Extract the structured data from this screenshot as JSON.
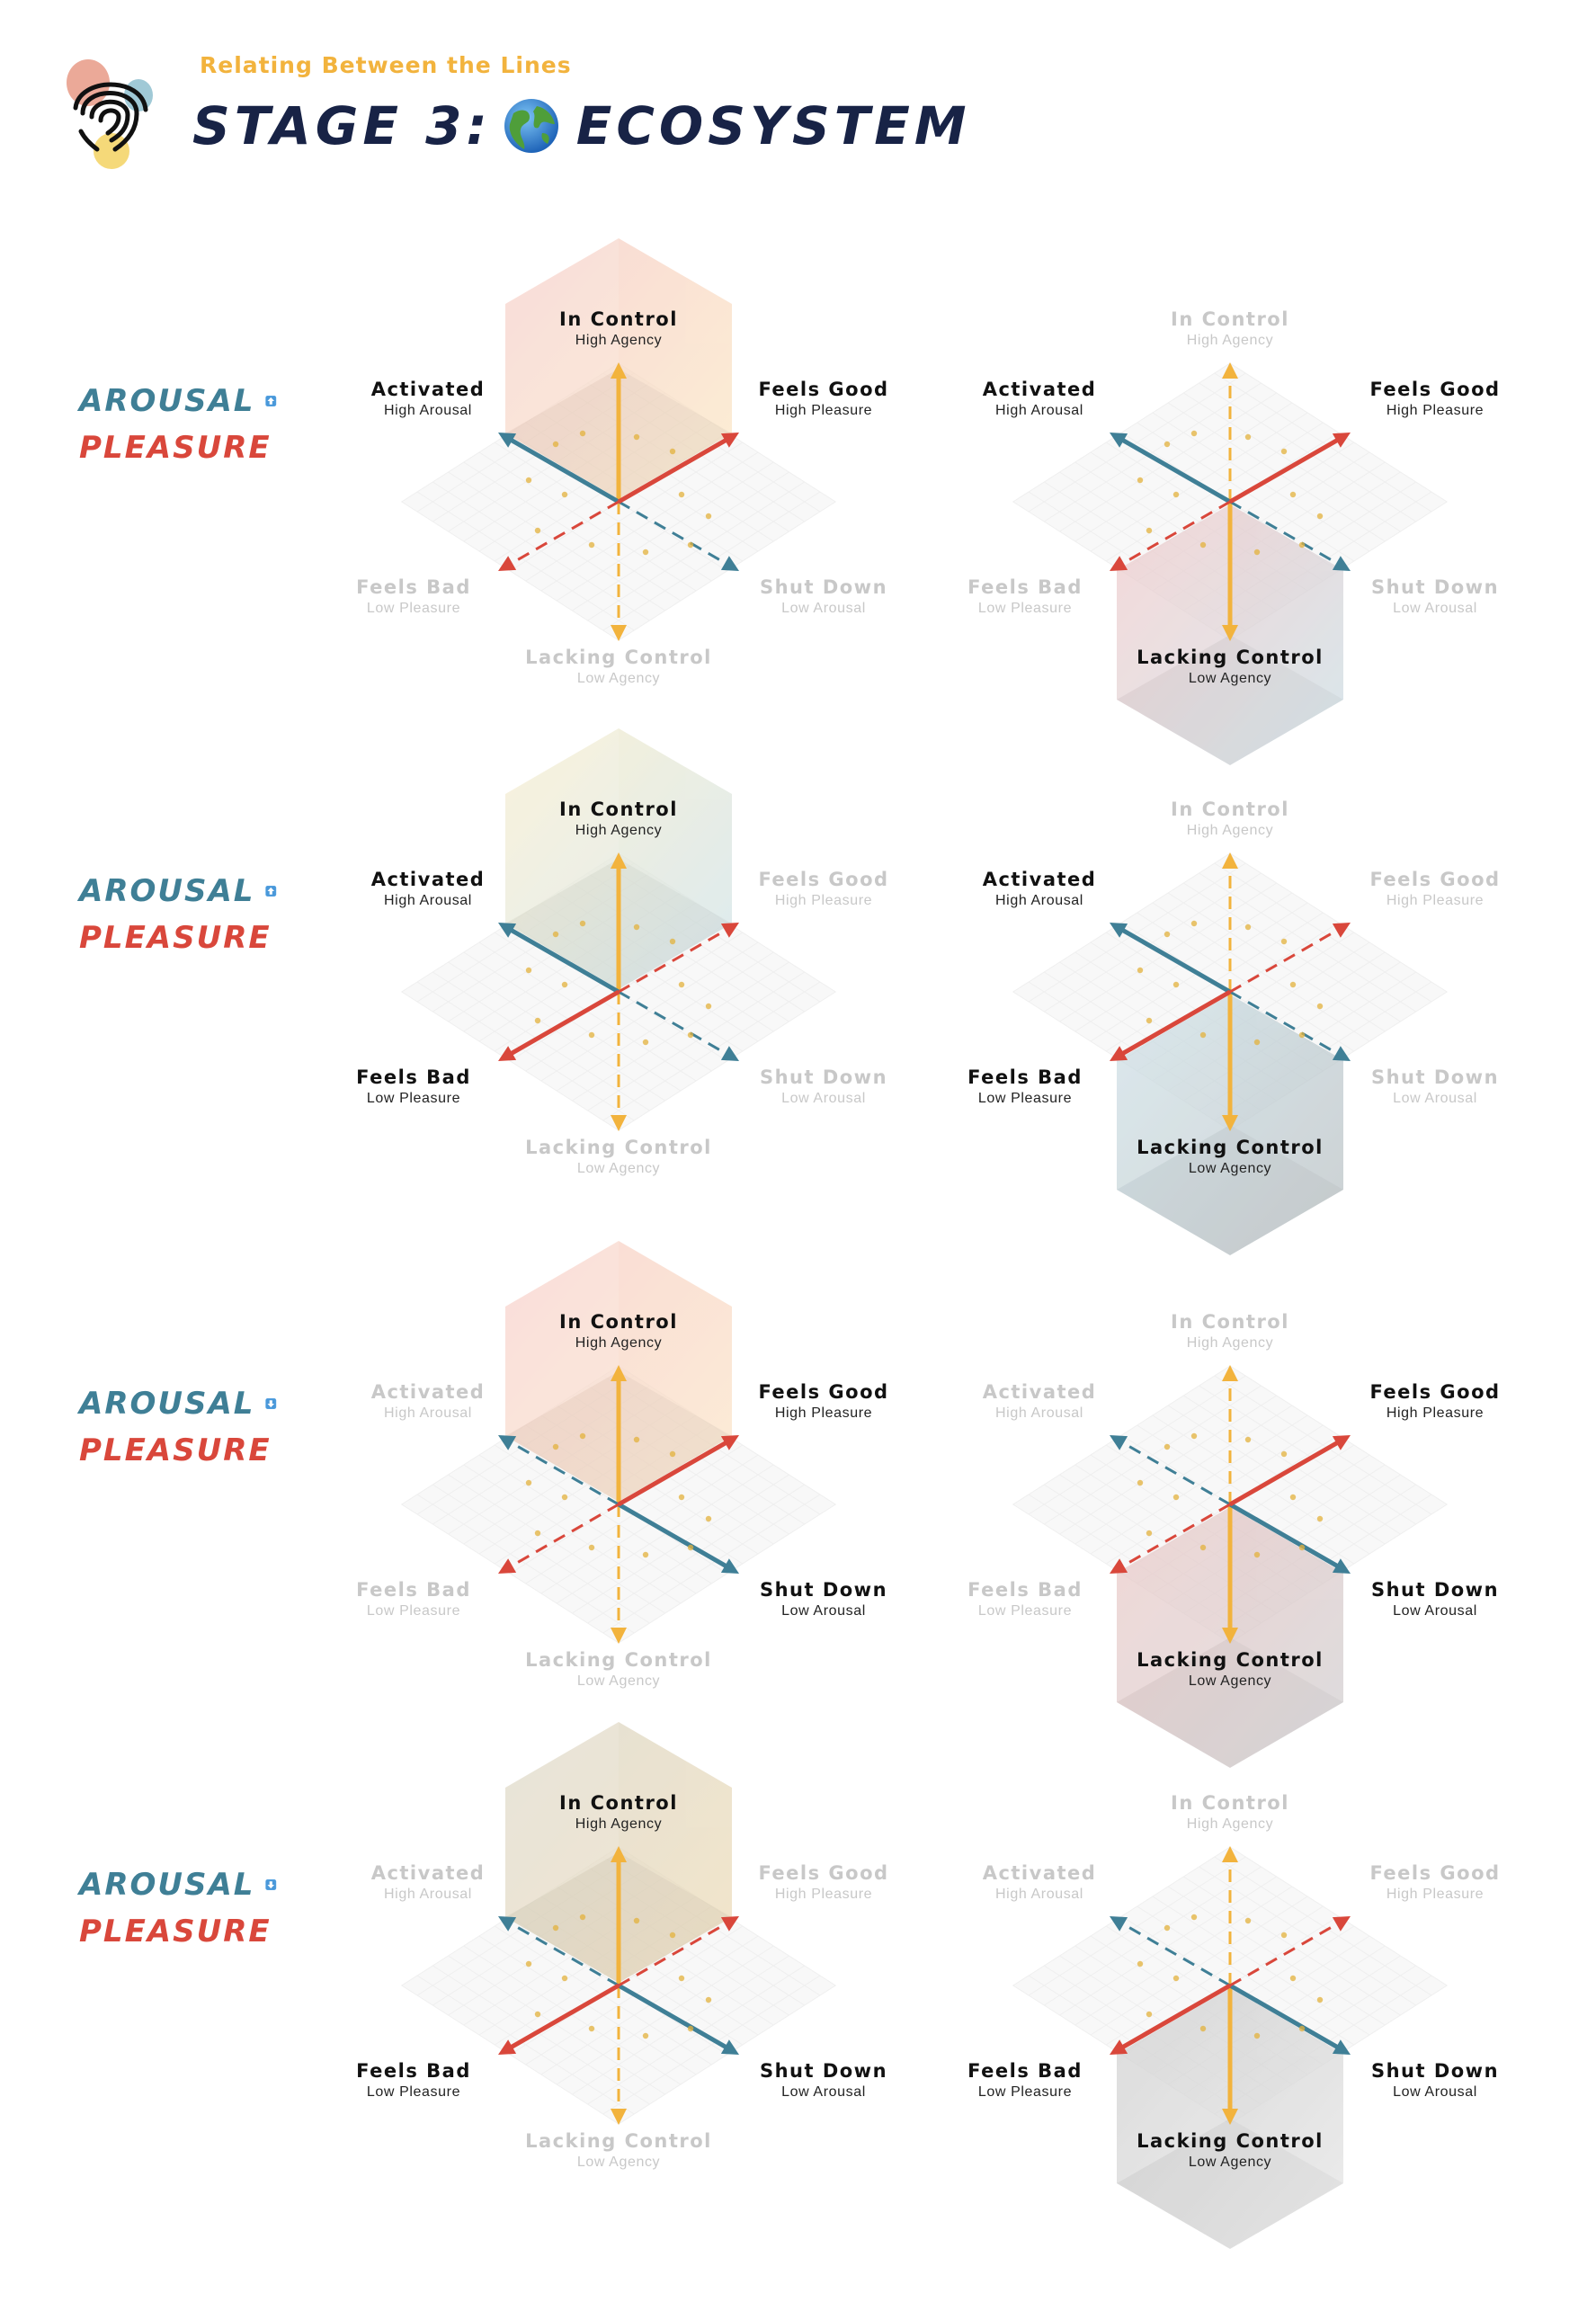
{
  "header": {
    "subtitle": "Relating Between the Lines",
    "title_left": "STAGE 3:",
    "title_right": "ECOSYSTEM",
    "globe_icon": "globe-emoji",
    "fingerprint_icon": "fingerprint-logo"
  },
  "axes": {
    "in_control": {
      "title": "In Control",
      "sub": "High Agency"
    },
    "lacking_control": {
      "title": "Lacking Control",
      "sub": "Low Agency"
    },
    "activated": {
      "title": "Activated",
      "sub": "High Arousal"
    },
    "shut_down": {
      "title": "Shut Down",
      "sub": "Low Arousal"
    },
    "feels_good": {
      "title": "Feels Good",
      "sub": "High Pleasure"
    },
    "feels_bad": {
      "title": "Feels Bad",
      "sub": "Low Pleasure"
    }
  },
  "colors": {
    "agency_axis": "#f2b33d",
    "arousal_axis": "#3f7f96",
    "pleasure_axis": "#d9473b",
    "title": "#182346",
    "faded_label": "#c8c8c8"
  },
  "rows": [
    {
      "arousal_label": "AROUSAL",
      "arousal_dir": "up",
      "pleasure_label": "PLEASURE",
      "pleasure_dir": "up",
      "diagrams": [
        {
          "cube": "upper",
          "active": [
            "in_control",
            "activated",
            "feels_good"
          ]
        },
        {
          "cube": "lower",
          "active": [
            "lacking_control",
            "activated",
            "feels_good"
          ]
        }
      ]
    },
    {
      "arousal_label": "AROUSAL",
      "arousal_dir": "up",
      "pleasure_label": "PLEASURE",
      "pleasure_dir": "down",
      "diagrams": [
        {
          "cube": "upper",
          "active": [
            "in_control",
            "activated",
            "feels_bad"
          ]
        },
        {
          "cube": "lower",
          "active": [
            "lacking_control",
            "activated",
            "feels_bad"
          ]
        }
      ]
    },
    {
      "arousal_label": "AROUSAL",
      "arousal_dir": "down",
      "pleasure_label": "PLEASURE",
      "pleasure_dir": "up",
      "diagrams": [
        {
          "cube": "upper",
          "active": [
            "in_control",
            "shut_down",
            "feels_good"
          ]
        },
        {
          "cube": "lower",
          "active": [
            "lacking_control",
            "shut_down",
            "feels_good"
          ]
        }
      ]
    },
    {
      "arousal_label": "AROUSAL",
      "arousal_dir": "down",
      "pleasure_label": "PLEASURE",
      "pleasure_dir": "down",
      "diagrams": [
        {
          "cube": "upper",
          "active": [
            "in_control",
            "shut_down",
            "feels_bad"
          ]
        },
        {
          "cube": "lower",
          "active": [
            "lacking_control",
            "shut_down",
            "feels_bad"
          ]
        }
      ]
    }
  ]
}
